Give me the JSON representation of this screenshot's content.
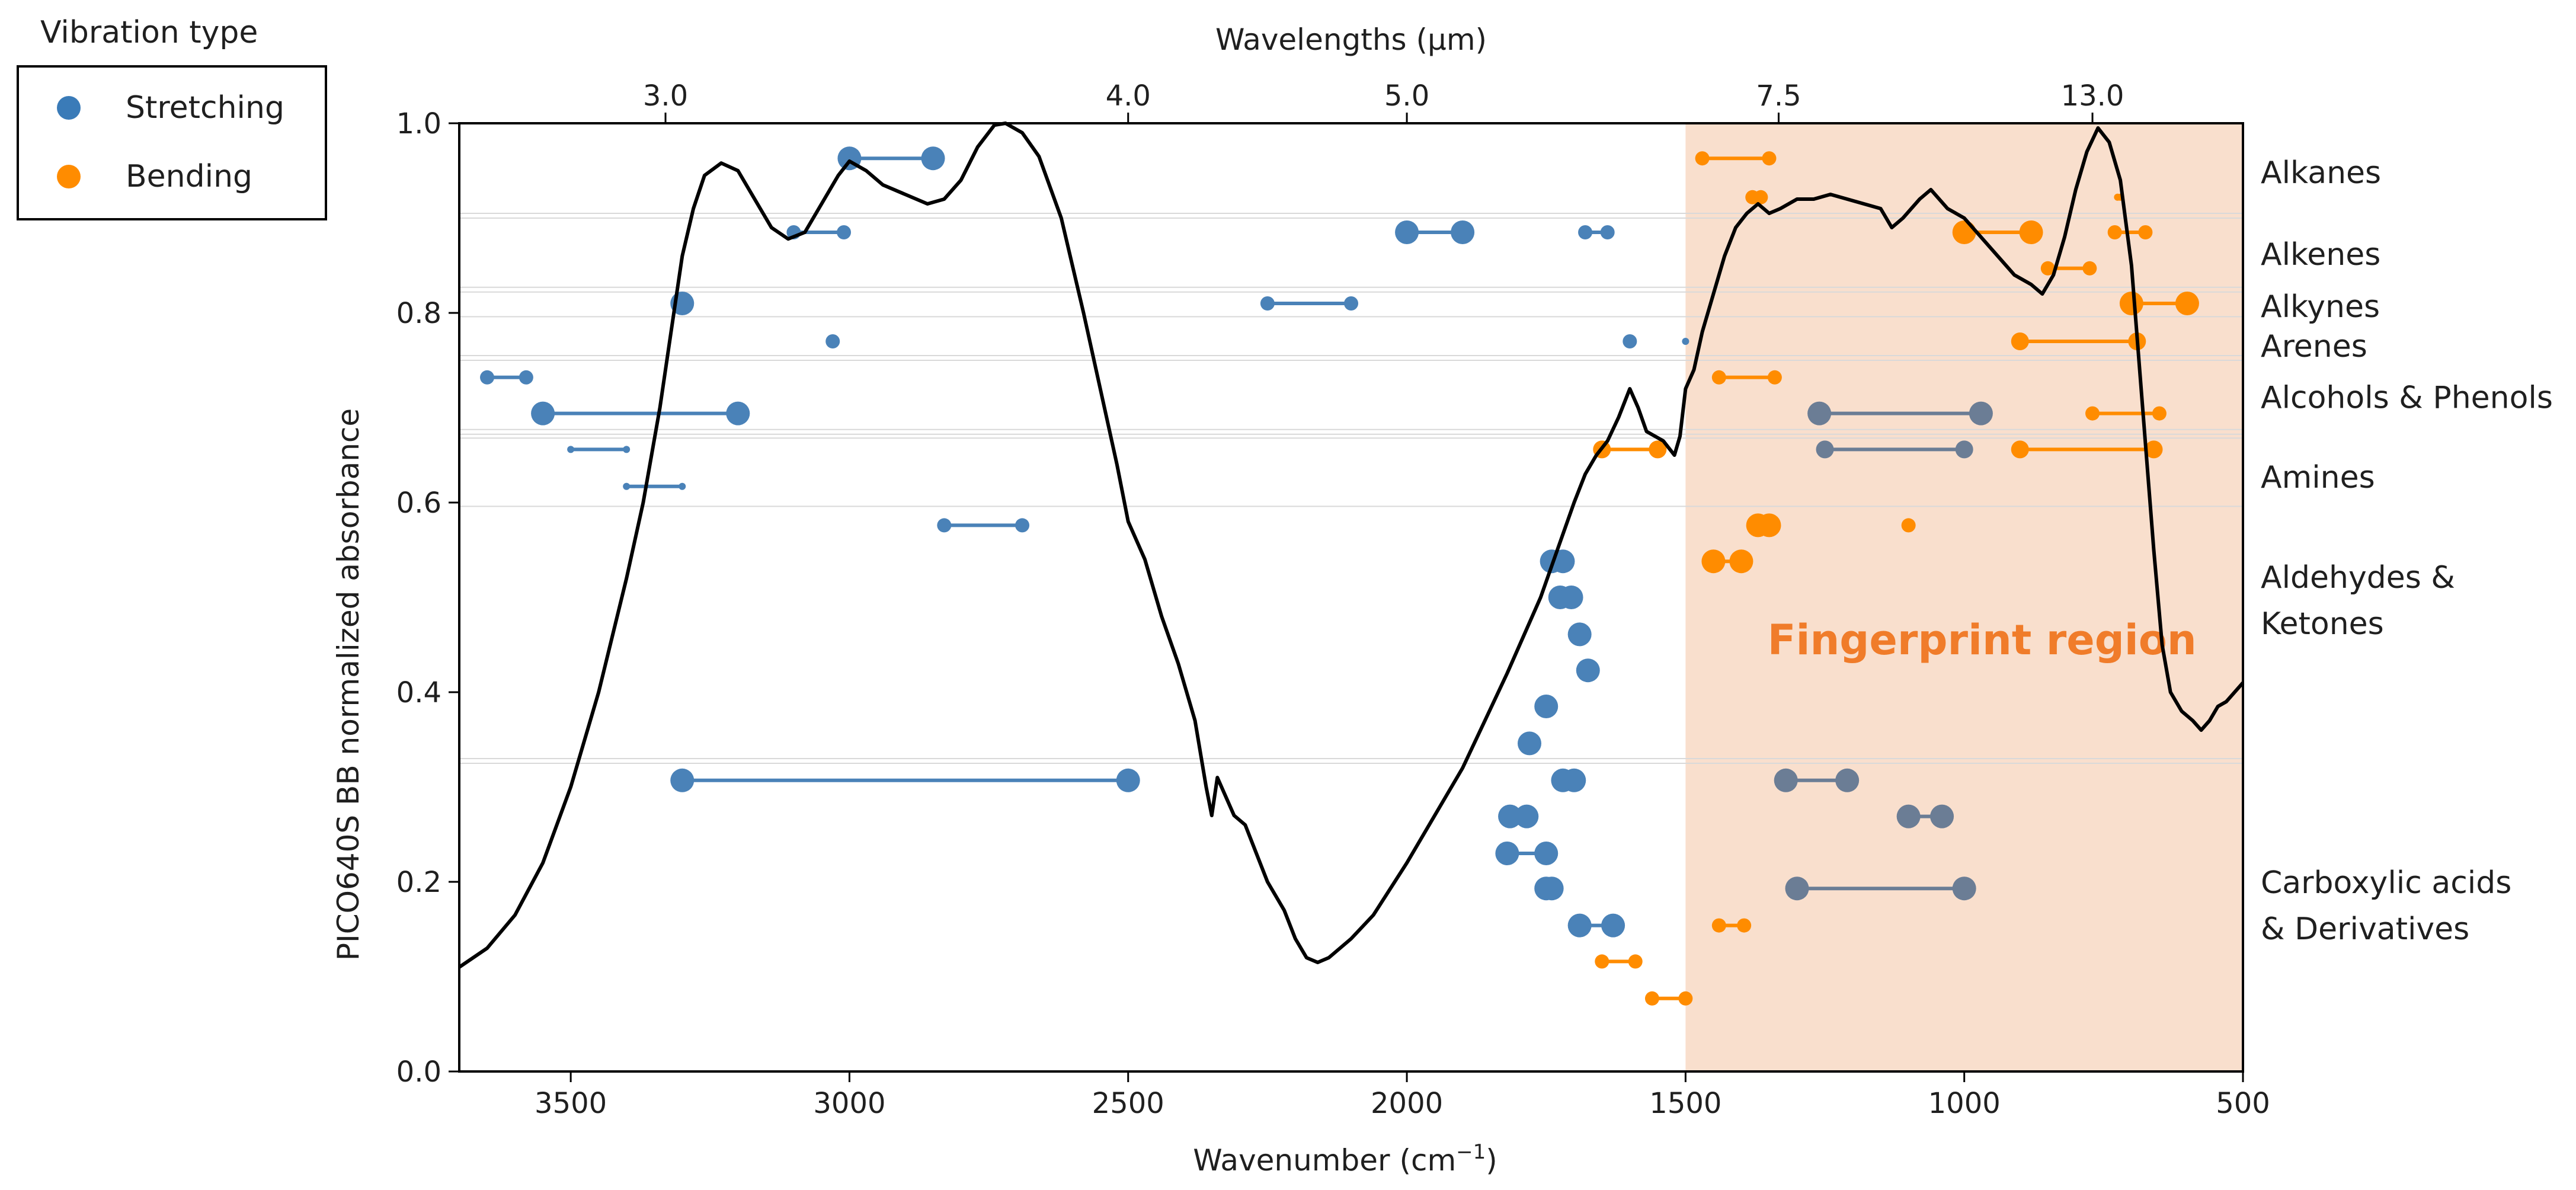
{
  "chart_data": {
    "type": "line",
    "ylabel": "PICO640S BB normalized absorbance",
    "xlabel": "Wavenumber (cm",
    "xlabel_superscript": "−1",
    "xlabel_suffix": ")",
    "top_axis_label": "Wavelengths (μm)",
    "xlim": [
      3700,
      500
    ],
    "ylim": [
      0.0,
      1.0
    ],
    "x_ticks": [
      3500,
      3000,
      2500,
      2000,
      1500,
      1000,
      500
    ],
    "y_ticks": [
      0.0,
      0.2,
      0.4,
      0.6,
      0.8,
      1.0
    ],
    "top_ticks": [
      {
        "label": "3.0",
        "wavenumber": 3330
      },
      {
        "label": "4.0",
        "wavenumber": 2500
      },
      {
        "label": "5.0",
        "wavenumber": 2000
      },
      {
        "label": "7.5",
        "wavenumber": 1333
      },
      {
        "label": "13.0",
        "wavenumber": 770
      }
    ],
    "legend": {
      "title": "Vibration type",
      "entries": [
        {
          "label": "Stretching",
          "color": "#3a7bb8"
        },
        {
          "label": "Bending",
          "color": "#ff8c00"
        }
      ]
    },
    "region": {
      "label": "Fingerprint region",
      "x_range": [
        1500,
        500
      ],
      "color": "#f9dfcd",
      "label_color": "#f07c2a"
    },
    "colors": {
      "stretching": "#4a82b8",
      "bending": "#ff8c00",
      "gray": "#6b7d95",
      "spectrum": "#000000"
    },
    "group_labels": [
      {
        "lines": [
          "Alkanes"
        ],
        "y": 0.948
      },
      {
        "lines": [
          "Alkenes"
        ],
        "y": 0.862
      },
      {
        "lines": [
          "Alkynes"
        ],
        "y": 0.807
      },
      {
        "lines": [
          "Arenes"
        ],
        "y": 0.765
      },
      {
        "lines": [
          "Alcohols & Phenols"
        ],
        "y": 0.711
      },
      {
        "lines": [
          "Amines"
        ],
        "y": 0.627
      },
      {
        "lines": [
          "Aldehydes &",
          "Ketones"
        ],
        "y": 0.497
      },
      {
        "lines": [
          "Carboxylic acids",
          "& Derivatives"
        ],
        "y": 0.175
      }
    ],
    "separators": [
      0.905,
      0.9,
      0.827,
      0.822,
      0.796,
      0.755,
      0.75,
      0.677,
      0.672,
      0.668,
      0.596,
      0.33,
      0.325
    ],
    "spectrum": [
      [
        3700,
        0.11
      ],
      [
        3650,
        0.13
      ],
      [
        3600,
        0.165
      ],
      [
        3550,
        0.22
      ],
      [
        3500,
        0.3
      ],
      [
        3450,
        0.4
      ],
      [
        3400,
        0.52
      ],
      [
        3370,
        0.6
      ],
      [
        3340,
        0.7
      ],
      [
        3320,
        0.78
      ],
      [
        3300,
        0.86
      ],
      [
        3280,
        0.91
      ],
      [
        3260,
        0.945
      ],
      [
        3230,
        0.958
      ],
      [
        3200,
        0.95
      ],
      [
        3170,
        0.92
      ],
      [
        3140,
        0.89
      ],
      [
        3110,
        0.878
      ],
      [
        3080,
        0.885
      ],
      [
        3050,
        0.915
      ],
      [
        3020,
        0.945
      ],
      [
        3000,
        0.96
      ],
      [
        2970,
        0.95
      ],
      [
        2940,
        0.935
      ],
      [
        2900,
        0.925
      ],
      [
        2860,
        0.915
      ],
      [
        2830,
        0.92
      ],
      [
        2800,
        0.94
      ],
      [
        2770,
        0.975
      ],
      [
        2740,
        0.998
      ],
      [
        2720,
        1.0
      ],
      [
        2690,
        0.99
      ],
      [
        2660,
        0.965
      ],
      [
        2620,
        0.9
      ],
      [
        2580,
        0.8
      ],
      [
        2550,
        0.72
      ],
      [
        2520,
        0.64
      ],
      [
        2500,
        0.58
      ],
      [
        2470,
        0.54
      ],
      [
        2440,
        0.48
      ],
      [
        2410,
        0.43
      ],
      [
        2380,
        0.37
      ],
      [
        2360,
        0.3
      ],
      [
        2350,
        0.27
      ],
      [
        2340,
        0.31
      ],
      [
        2325,
        0.29
      ],
      [
        2310,
        0.27
      ],
      [
        2290,
        0.26
      ],
      [
        2270,
        0.23
      ],
      [
        2250,
        0.2
      ],
      [
        2220,
        0.17
      ],
      [
        2200,
        0.14
      ],
      [
        2180,
        0.12
      ],
      [
        2160,
        0.115
      ],
      [
        2140,
        0.12
      ],
      [
        2100,
        0.14
      ],
      [
        2060,
        0.165
      ],
      [
        2000,
        0.22
      ],
      [
        1940,
        0.28
      ],
      [
        1900,
        0.32
      ],
      [
        1860,
        0.37
      ],
      [
        1820,
        0.42
      ],
      [
        1790,
        0.46
      ],
      [
        1760,
        0.5
      ],
      [
        1730,
        0.55
      ],
      [
        1700,
        0.6
      ],
      [
        1680,
        0.63
      ],
      [
        1660,
        0.65
      ],
      [
        1640,
        0.665
      ],
      [
        1620,
        0.69
      ],
      [
        1600,
        0.72
      ],
      [
        1585,
        0.7
      ],
      [
        1570,
        0.675
      ],
      [
        1555,
        0.67
      ],
      [
        1540,
        0.665
      ],
      [
        1520,
        0.65
      ],
      [
        1510,
        0.67
      ],
      [
        1500,
        0.72
      ],
      [
        1485,
        0.74
      ],
      [
        1470,
        0.78
      ],
      [
        1450,
        0.82
      ],
      [
        1430,
        0.86
      ],
      [
        1410,
        0.89
      ],
      [
        1390,
        0.905
      ],
      [
        1370,
        0.915
      ],
      [
        1350,
        0.905
      ],
      [
        1330,
        0.91
      ],
      [
        1300,
        0.92
      ],
      [
        1270,
        0.92
      ],
      [
        1240,
        0.925
      ],
      [
        1210,
        0.92
      ],
      [
        1180,
        0.915
      ],
      [
        1150,
        0.91
      ],
      [
        1130,
        0.89
      ],
      [
        1110,
        0.9
      ],
      [
        1080,
        0.92
      ],
      [
        1060,
        0.93
      ],
      [
        1030,
        0.91
      ],
      [
        1000,
        0.9
      ],
      [
        970,
        0.88
      ],
      [
        940,
        0.86
      ],
      [
        910,
        0.84
      ],
      [
        880,
        0.83
      ],
      [
        860,
        0.82
      ],
      [
        840,
        0.84
      ],
      [
        820,
        0.88
      ],
      [
        800,
        0.93
      ],
      [
        780,
        0.97
      ],
      [
        760,
        0.995
      ],
      [
        740,
        0.98
      ],
      [
        720,
        0.94
      ],
      [
        700,
        0.85
      ],
      [
        680,
        0.7
      ],
      [
        660,
        0.55
      ],
      [
        645,
        0.45
      ],
      [
        630,
        0.4
      ],
      [
        610,
        0.38
      ],
      [
        590,
        0.37
      ],
      [
        575,
        0.36
      ],
      [
        560,
        0.37
      ],
      [
        545,
        0.385
      ],
      [
        530,
        0.39
      ],
      [
        515,
        0.4
      ],
      [
        500,
        0.41
      ]
    ],
    "series": [
      {
        "group": "alkanes",
        "type": "stretching",
        "x": [
          3000,
          2850
        ],
        "y": 0.963,
        "size": "l"
      },
      {
        "group": "alkanes",
        "type": "bending",
        "x": [
          1470,
          1350
        ],
        "y": 0.963,
        "size": "s"
      },
      {
        "group": "alkanes",
        "type": "bending",
        "x": [
          1380,
          1365
        ],
        "y": 0.922,
        "size": "s"
      },
      {
        "group": "alkanes",
        "type": "bending",
        "x": [
          725,
          720
        ],
        "y": 0.922,
        "size": "xs"
      },
      {
        "group": "alkenes",
        "type": "stretching",
        "x": [
          3100,
          3010
        ],
        "y": 0.885,
        "size": "s"
      },
      {
        "group": "alkenes",
        "type": "stretching",
        "x": [
          2000,
          1900
        ],
        "y": 0.885,
        "size": "l"
      },
      {
        "group": "alkenes",
        "type": "stretching",
        "x": [
          1680,
          1640
        ],
        "y": 0.885,
        "size": "s"
      },
      {
        "group": "alkenes",
        "type": "bending",
        "x": [
          1000,
          880
        ],
        "y": 0.885,
        "size": "l"
      },
      {
        "group": "alkenes",
        "type": "bending",
        "x": [
          730,
          675
        ],
        "y": 0.885,
        "size": "s"
      },
      {
        "group": "alkenes",
        "type": "bending",
        "x": [
          850,
          775
        ],
        "y": 0.847,
        "size": "s"
      },
      {
        "group": "alkynes",
        "type": "stretching",
        "x": [
          3300,
          3300
        ],
        "y": 0.81,
        "size": "l"
      },
      {
        "group": "alkynes",
        "type": "stretching",
        "x": [
          2250,
          2100
        ],
        "y": 0.81,
        "size": "s"
      },
      {
        "group": "alkynes",
        "type": "bending",
        "x": [
          700,
          600
        ],
        "y": 0.81,
        "size": "l"
      },
      {
        "group": "arenes",
        "type": "stretching",
        "x": [
          3030,
          3030
        ],
        "y": 0.77,
        "size": "s"
      },
      {
        "group": "arenes",
        "type": "stretching",
        "x": [
          1600,
          1600
        ],
        "y": 0.77,
        "size": "s"
      },
      {
        "group": "arenes",
        "type": "stretching",
        "x": [
          1500,
          1500
        ],
        "y": 0.77,
        "size": "xs"
      },
      {
        "group": "arenes",
        "type": "bending",
        "x": [
          900,
          690
        ],
        "y": 0.77,
        "size": "m"
      },
      {
        "group": "alcohols",
        "type": "stretching",
        "x": [
          3650,
          3580
        ],
        "y": 0.732,
        "size": "s"
      },
      {
        "group": "alcohols",
        "type": "bending",
        "x": [
          1440,
          1340
        ],
        "y": 0.732,
        "size": "s"
      },
      {
        "group": "alcohols",
        "type": "stretching",
        "x": [
          3550,
          3200
        ],
        "y": 0.694,
        "size": "l"
      },
      {
        "group": "alcohols",
        "type": "gray",
        "x": [
          1260,
          970
        ],
        "y": 0.694,
        "size": "l"
      },
      {
        "group": "alcohols",
        "type": "bending",
        "x": [
          770,
          650
        ],
        "y": 0.694,
        "size": "s"
      },
      {
        "group": "amines",
        "type": "stretching",
        "x": [
          3500,
          3400
        ],
        "y": 0.656,
        "size": "xs"
      },
      {
        "group": "amines",
        "type": "bending",
        "x": [
          1650,
          1550
        ],
        "y": 0.656,
        "size": "m"
      },
      {
        "group": "amines",
        "type": "gray",
        "x": [
          1250,
          1000
        ],
        "y": 0.656,
        "size": "m"
      },
      {
        "group": "amines",
        "type": "bending",
        "x": [
          900,
          660
        ],
        "y": 0.656,
        "size": "m"
      },
      {
        "group": "amines",
        "type": "stretching",
        "x": [
          3400,
          3300
        ],
        "y": 0.617,
        "size": "xs"
      },
      {
        "group": "aldehydes",
        "type": "stretching",
        "x": [
          2830,
          2690
        ],
        "y": 0.576,
        "size": "s"
      },
      {
        "group": "aldehydes",
        "type": "bending",
        "x": [
          1370,
          1350
        ],
        "y": 0.576,
        "size": "l"
      },
      {
        "group": "aldehydes",
        "type": "bending",
        "x": [
          1100,
          1100
        ],
        "y": 0.576,
        "size": "s"
      },
      {
        "group": "aldehydes",
        "type": "stretching",
        "x": [
          1740,
          1720
        ],
        "y": 0.538,
        "size": "l"
      },
      {
        "group": "aldehydes",
        "type": "bending",
        "x": [
          1450,
          1400
        ],
        "y": 0.538,
        "size": "l"
      },
      {
        "group": "aldehydes",
        "type": "stretching",
        "x": [
          1725,
          1705
        ],
        "y": 0.5,
        "size": "l"
      },
      {
        "group": "aldehydes",
        "type": "stretching",
        "x": [
          1690,
          1690
        ],
        "y": 0.461,
        "size": "l"
      },
      {
        "group": "aldehydes",
        "type": "stretching",
        "x": [
          1675,
          1675
        ],
        "y": 0.423,
        "size": "l"
      },
      {
        "group": "carboxylic",
        "type": "stretching",
        "x": [
          1750,
          1750
        ],
        "y": 0.385,
        "size": "l"
      },
      {
        "group": "carboxylic",
        "type": "stretching",
        "x": [
          1780,
          1780
        ],
        "y": 0.346,
        "size": "l"
      },
      {
        "group": "carboxylic",
        "type": "stretching",
        "x": [
          3300,
          2500
        ],
        "y": 0.307,
        "size": "l"
      },
      {
        "group": "carboxylic",
        "type": "stretching",
        "x": [
          1720,
          1700
        ],
        "y": 0.307,
        "size": "l"
      },
      {
        "group": "carboxylic",
        "type": "gray",
        "x": [
          1320,
          1210
        ],
        "y": 0.307,
        "size": "l"
      },
      {
        "group": "carboxylic",
        "type": "stretching",
        "x": [
          1815,
          1785
        ],
        "y": 0.269,
        "size": "l"
      },
      {
        "group": "carboxylic",
        "type": "gray",
        "x": [
          1100,
          1040
        ],
        "y": 0.269,
        "size": "l"
      },
      {
        "group": "carboxylic",
        "type": "stretching",
        "x": [
          1820,
          1750
        ],
        "y": 0.23,
        "size": "l"
      },
      {
        "group": "carboxylic",
        "type": "stretching",
        "x": [
          1750,
          1740
        ],
        "y": 0.193,
        "size": "l"
      },
      {
        "group": "carboxylic",
        "type": "gray",
        "x": [
          1300,
          1000
        ],
        "y": 0.193,
        "size": "l"
      },
      {
        "group": "carboxylic",
        "type": "stretching",
        "x": [
          1690,
          1630
        ],
        "y": 0.154,
        "size": "l"
      },
      {
        "group": "carboxylic",
        "type": "bending",
        "x": [
          1440,
          1395
        ],
        "y": 0.154,
        "size": "s"
      },
      {
        "group": "carboxylic",
        "type": "bending",
        "x": [
          1650,
          1590
        ],
        "y": 0.116,
        "size": "s"
      },
      {
        "group": "carboxylic",
        "type": "bending",
        "x": [
          1560,
          1500
        ],
        "y": 0.077,
        "size": "s"
      }
    ]
  }
}
